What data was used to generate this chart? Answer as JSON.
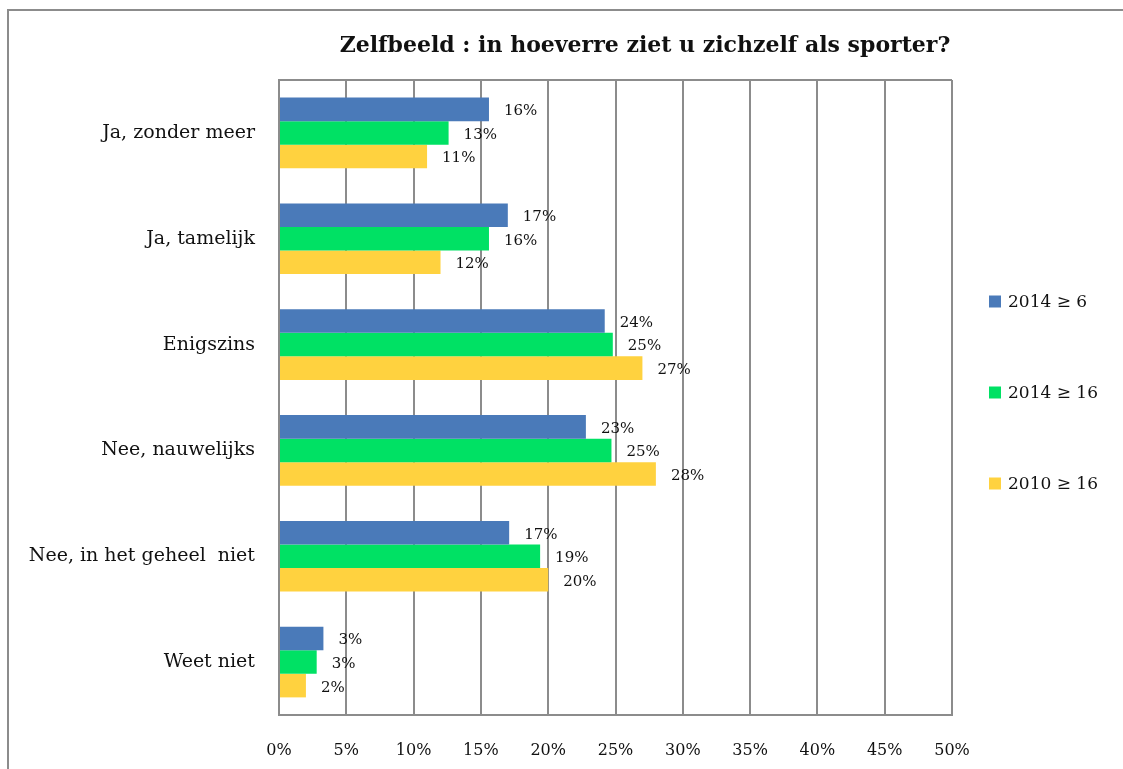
{
  "chart_data": {
    "type": "bar",
    "orientation": "horizontal",
    "title": "Zelfbeeld : in hoeverre ziet u zichzelf als sporter?",
    "categories": [
      "Ja, zonder meer",
      "Ja, tamelijk",
      "Enigszins",
      "Nee, nauwelijks",
      "Nee, in het geheel  niet",
      "Weet niet"
    ],
    "series": [
      {
        "name": "2014 ≥ 6",
        "color": "#4a7ab9",
        "values": [
          15.6,
          17.0,
          24.2,
          22.8,
          17.1,
          3.3
        ],
        "value_labels": [
          "16%",
          "17%",
          "24%",
          "23%",
          "17%",
          "3%"
        ]
      },
      {
        "name": "2014 ≥ 16",
        "color": "#00e164",
        "values": [
          12.6,
          15.6,
          24.8,
          24.7,
          19.4,
          2.8
        ],
        "value_labels": [
          "13%",
          "16%",
          "25%",
          "25%",
          "19%",
          "3%"
        ]
      },
      {
        "name": "2010 ≥ 16",
        "color": "#ffd23f",
        "values": [
          11.0,
          12.0,
          27.0,
          28.0,
          20.0,
          2.0
        ],
        "value_labels": [
          "11%",
          "12%",
          "27%",
          "28%",
          "20%",
          "2%"
        ]
      }
    ],
    "xlim": [
      0,
      50
    ],
    "xticks": [
      {
        "value": 0,
        "label": "0%"
      },
      {
        "value": 5,
        "label": "5%"
      },
      {
        "value": 10,
        "label": "10%"
      },
      {
        "value": 15,
        "label": "15%"
      },
      {
        "value": 20,
        "label": "20%"
      },
      {
        "value": 25,
        "label": "25%"
      },
      {
        "value": 30,
        "label": "30%"
      },
      {
        "value": 35,
        "label": "35%"
      },
      {
        "value": 40,
        "label": "40%"
      },
      {
        "value": 45,
        "label": "45%"
      },
      {
        "value": 50,
        "label": "50%"
      }
    ],
    "grid": "x",
    "legend": "right"
  }
}
